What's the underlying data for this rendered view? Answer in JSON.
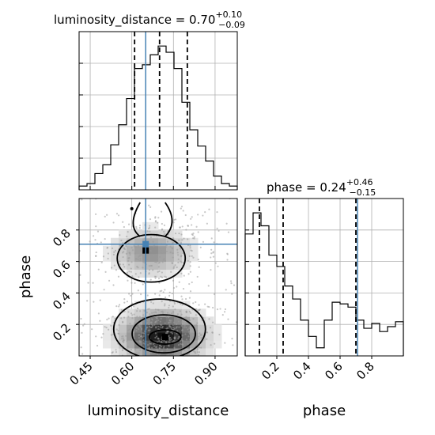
{
  "chart_data": {
    "type": "corner",
    "parameters": [
      "luminosity_distance",
      "phase"
    ],
    "truths": {
      "luminosity_distance": 0.65,
      "phase": 0.71
    },
    "colors": {
      "truth": "#4682b4",
      "hist": "#000000",
      "density": "#808080"
    },
    "panels": [
      {
        "id": "hist_luminosity_distance",
        "type": "histogram",
        "title": "luminosity_distance = 0.70",
        "title_sup": "+0.10",
        "title_sub": "−0.09",
        "xlim": [
          0.41,
          0.98
        ],
        "bin_edges": [
          0.41,
          0.4385,
          0.467,
          0.4955,
          0.524,
          0.5525,
          0.581,
          0.6095,
          0.638,
          0.6665,
          0.695,
          0.7235,
          0.752,
          0.7805,
          0.809,
          0.8375,
          0.866,
          0.8945,
          0.923,
          0.9515,
          0.98
        ],
        "counts": [
          3,
          5,
          13,
          20,
          36,
          52,
          73,
          97,
          100,
          108,
          115,
          110,
          97,
          70,
          48,
          35,
          23,
          11,
          5,
          3
        ],
        "quantiles": [
          0.61,
          0.7,
          0.8
        ],
        "truth": 0.65
      },
      {
        "id": "scatter_phase_vs_luminosity_distance",
        "type": "scatter",
        "xlim": [
          0.41,
          0.98
        ],
        "ylim": [
          0.0,
          1.0
        ],
        "dense_peaks": [
          {
            "x": 0.72,
            "y": 0.12
          },
          {
            "x": 0.65,
            "y": 0.67
          }
        ],
        "truth_x": 0.65,
        "truth_y": 0.71,
        "xticks": [
          "0.45",
          "0.60",
          "0.75",
          "0.90"
        ],
        "yticks": [
          "0.2",
          "0.4",
          "0.6",
          "0.8"
        ],
        "xlabel": "luminosity_distance",
        "ylabel": "phase"
      },
      {
        "id": "hist_phase",
        "type": "histogram",
        "title": "phase = 0.24",
        "title_sup": "+0.46",
        "title_sub": "−0.15",
        "xlim": [
          0.0,
          1.0
        ],
        "bin_edges": [
          0.0,
          0.05,
          0.1,
          0.15,
          0.2,
          0.25,
          0.3,
          0.35,
          0.4,
          0.45,
          0.5,
          0.55,
          0.6,
          0.65,
          0.7,
          0.75,
          0.8,
          0.85,
          0.9,
          0.95,
          1.0
        ],
        "counts": [
          75,
          88,
          80,
          62,
          55,
          43,
          35,
          22,
          12,
          5,
          22,
          33,
          32,
          30,
          22,
          17,
          20,
          15,
          18,
          21
        ],
        "quantiles": [
          0.09,
          0.24,
          0.7
        ],
        "truth": 0.71,
        "xticks": [
          "0.2",
          "0.4",
          "0.6",
          "0.8"
        ],
        "xlabel": "phase"
      }
    ]
  }
}
